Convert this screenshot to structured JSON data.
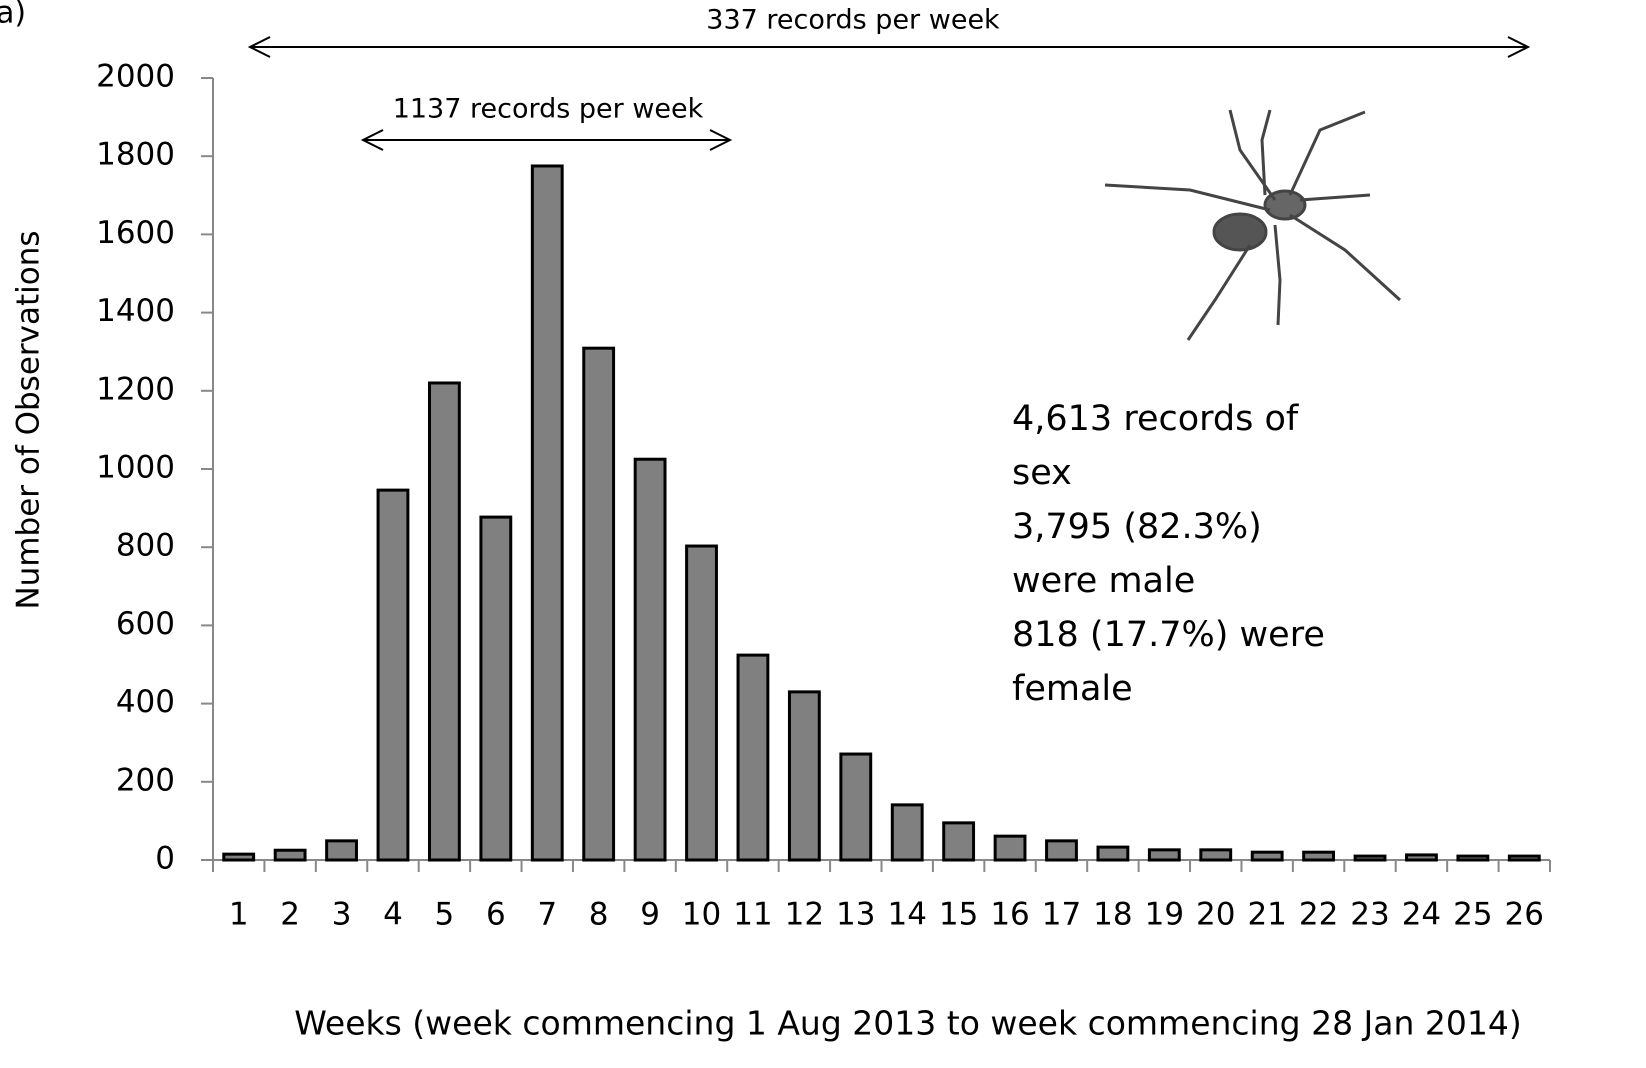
{
  "chart_data": {
    "type": "bar",
    "panel_label": "a)",
    "x_label": "Weeks (week commencing 1 Aug 2013 to week commencing 28 Jan 2014)",
    "y_label": "Number of Observations",
    "categories": [
      "1",
      "2",
      "3",
      "4",
      "5",
      "6",
      "7",
      "8",
      "9",
      "10",
      "11",
      "12",
      "13",
      "14",
      "15",
      "16",
      "17",
      "18",
      "19",
      "20",
      "21",
      "22",
      "23",
      "24",
      "25",
      "26"
    ],
    "values": [
      15,
      25,
      49,
      946,
      1220,
      877,
      1775,
      1309,
      1025,
      803,
      524,
      430,
      271,
      141,
      95,
      61,
      49,
      33,
      26,
      26,
      20,
      20,
      10,
      13,
      10,
      10
    ],
    "color": "#808080",
    "ylim": [
      0,
      2000
    ],
    "yticks": [
      0,
      200,
      400,
      600,
      800,
      1000,
      1200,
      1400,
      1600,
      1800,
      2000
    ],
    "grid": false,
    "annotations": [
      "337 records per week",
      "1137 records per week"
    ],
    "note_lines": [
      "4,613 records of",
      "sex",
      "3,795 (82.3%)",
      "were male",
      "818 (17.7%) were",
      "female"
    ]
  }
}
